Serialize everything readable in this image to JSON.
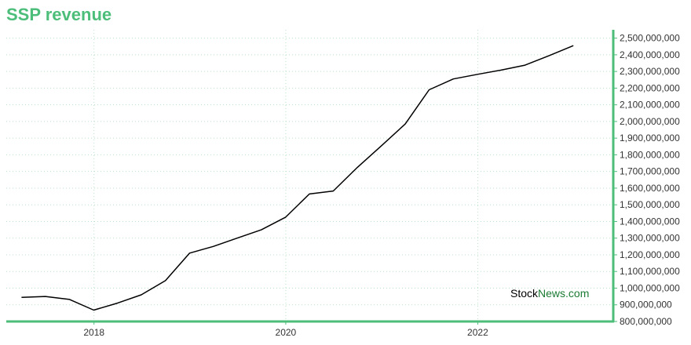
{
  "title": "SSP revenue",
  "watermark": {
    "part1": "Stock",
    "part2": "News",
    "part3": ".com"
  },
  "colors": {
    "title": "#4cbe7a",
    "axis": "#4cbe7a",
    "grid": "#b8e2c8",
    "line": "#000000",
    "watermark_dark": "#000000",
    "watermark_green": "#1a7a33"
  },
  "chart_data": {
    "type": "line",
    "title": "SSP revenue",
    "xlabel": "",
    "ylabel": "",
    "xlim": [
      "2017-02-01",
      "2023-06-01"
    ],
    "ylim": [
      800000000,
      2550000000
    ],
    "x_ticks": [
      "2018",
      "2020",
      "2022"
    ],
    "y_ticks": [
      "800,000,000",
      "900,000,000",
      "1,000,000,000",
      "1,100,000,000",
      "1,200,000,000",
      "1,300,000,000",
      "1,400,000,000",
      "1,500,000,000",
      "1,600,000,000",
      "1,700,000,000",
      "1,800,000,000",
      "1,900,000,000",
      "2,000,000,000",
      "2,100,000,000",
      "2,200,000,000",
      "2,300,000,000",
      "2,400,000,000",
      "2,500,000,000"
    ],
    "grid": true,
    "y_axis_position": "right",
    "series": [
      {
        "x": [
          "2017-03-31",
          "2017-06-30",
          "2017-09-30",
          "2017-12-31",
          "2018-03-31",
          "2018-06-30",
          "2018-09-30",
          "2018-12-31",
          "2019-03-31",
          "2019-06-30",
          "2019-09-30",
          "2019-12-31",
          "2020-03-31",
          "2020-06-30",
          "2020-09-30",
          "2020-12-31",
          "2021-03-31",
          "2021-06-30",
          "2021-09-30",
          "2021-12-31",
          "2022-03-31",
          "2022-06-30",
          "2022-09-30",
          "2022-12-31"
        ],
        "y": [
          945000000,
          950000000,
          932000000,
          868000000,
          910000000,
          960000000,
          1045000000,
          1210000000,
          1250000000,
          1300000000,
          1350000000,
          1425000000,
          1565000000,
          1583000000,
          1725000000,
          1855000000,
          1985000000,
          2190000000,
          2255000000,
          2283000000,
          2308000000,
          2338000000,
          2395000000,
          2455000000
        ]
      }
    ]
  }
}
